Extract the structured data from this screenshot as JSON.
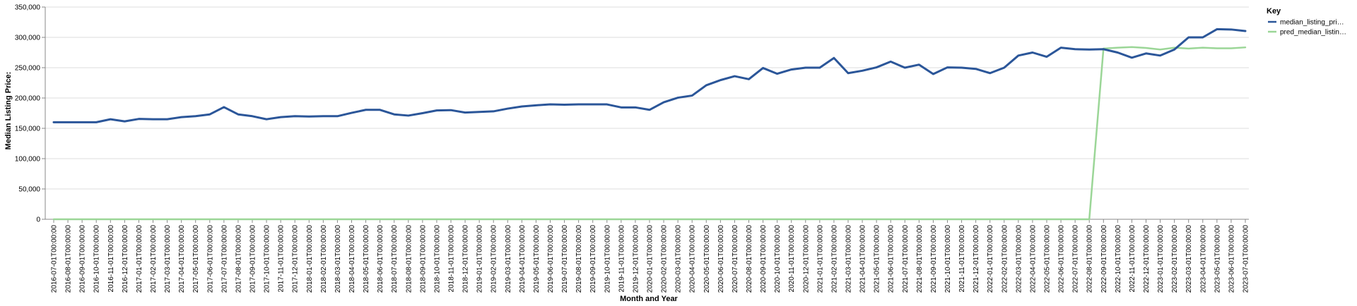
{
  "chart_data": {
    "type": "line",
    "xlabel": "Month and Year",
    "ylabel": "Median Listing Price:",
    "ylim": [
      0,
      350000
    ],
    "yticks": [
      0,
      50000,
      100000,
      150000,
      200000,
      250000,
      300000,
      350000
    ],
    "ytick_labels": [
      "0",
      "50,000",
      "100,000",
      "150,000",
      "200,000",
      "250,000",
      "300,000",
      "350,000"
    ],
    "grid": true,
    "legend": {
      "title": "Key",
      "position": "top-right",
      "entries": [
        "median_listing_pri…",
        "pred_median_listin…"
      ]
    },
    "x": [
      "2016-07-01T00:00:00",
      "2016-08-01T00:00:00",
      "2016-09-01T00:00:00",
      "2016-10-01T00:00:00",
      "2016-11-01T00:00:00",
      "2016-12-01T00:00:00",
      "2017-01-01T00:00:00",
      "2017-02-01T00:00:00",
      "2017-03-01T00:00:00",
      "2017-04-01T00:00:00",
      "2017-05-01T00:00:00",
      "2017-06-01T00:00:00",
      "2017-07-01T00:00:00",
      "2017-08-01T00:00:00",
      "2017-09-01T00:00:00",
      "2017-10-01T00:00:00",
      "2017-11-01T00:00:00",
      "2017-12-01T00:00:00",
      "2018-01-01T00:00:00",
      "2018-02-01T00:00:00",
      "2018-03-01T00:00:00",
      "2018-04-01T00:00:00",
      "2018-05-01T00:00:00",
      "2018-06-01T00:00:00",
      "2018-07-01T00:00:00",
      "2018-08-01T00:00:00",
      "2018-09-01T00:00:00",
      "2018-10-01T00:00:00",
      "2018-11-01T00:00:00",
      "2018-12-01T00:00:00",
      "2019-01-01T00:00:00",
      "2019-02-01T00:00:00",
      "2019-03-01T00:00:00",
      "2019-04-01T00:00:00",
      "2019-05-01T00:00:00",
      "2019-06-01T00:00:00",
      "2019-07-01T00:00:00",
      "2019-08-01T00:00:00",
      "2019-09-01T00:00:00",
      "2019-10-01T00:00:00",
      "2019-11-01T00:00:00",
      "2019-12-01T00:00:00",
      "2020-01-01T00:00:00",
      "2020-02-01T00:00:00",
      "2020-03-01T00:00:00",
      "2020-04-01T00:00:00",
      "2020-05-01T00:00:00",
      "2020-06-01T00:00:00",
      "2020-07-01T00:00:00",
      "2020-08-01T00:00:00",
      "2020-09-01T00:00:00",
      "2020-10-01T00:00:00",
      "2020-11-01T00:00:00",
      "2020-12-01T00:00:00",
      "2021-01-01T00:00:00",
      "2021-02-01T00:00:00",
      "2021-03-01T00:00:00",
      "2021-04-01T00:00:00",
      "2021-05-01T00:00:00",
      "2021-06-01T00:00:00",
      "2021-07-01T00:00:00",
      "2021-08-01T00:00:00",
      "2021-09-01T00:00:00",
      "2021-10-01T00:00:00",
      "2021-11-01T00:00:00",
      "2021-12-01T00:00:00",
      "2022-01-01T00:00:00",
      "2022-02-01T00:00:00",
      "2022-03-01T00:00:00",
      "2022-04-01T00:00:00",
      "2022-05-01T00:00:00",
      "2022-06-01T00:00:00",
      "2022-07-01T00:00:00",
      "2022-08-01T00:00:00",
      "2022-09-01T00:00:00",
      "2022-10-01T00:00:00",
      "2022-11-01T00:00:00",
      "2022-12-01T00:00:00",
      "2023-01-01T00:00:00",
      "2023-02-01T00:00:00",
      "2023-03-01T00:00:00",
      "2023-04-01T00:00:00",
      "2023-05-01T00:00:00",
      "2023-06-01T00:00:00",
      "2023-07-01T00:00:00"
    ],
    "series": [
      {
        "name": "median_listing_pri…",
        "color": "#2b5699",
        "values": [
          160000,
          160000,
          160000,
          160000,
          165000,
          161500,
          165500,
          165000,
          165000,
          168500,
          170000,
          173000,
          185000,
          173000,
          170000,
          165000,
          168500,
          170000,
          169500,
          170000,
          170000,
          175500,
          180500,
          180500,
          173000,
          171000,
          175000,
          179500,
          180000,
          176000,
          177000,
          178000,
          182500,
          186000,
          188000,
          189500,
          189000,
          189500,
          189500,
          189500,
          184500,
          184500,
          180500,
          193000,
          200500,
          204000,
          221000,
          229500,
          236000,
          231000,
          249500,
          240000,
          247000,
          250000,
          250000,
          266000,
          241000,
          245000,
          250500,
          260000,
          250000,
          255000,
          239500,
          250500,
          250000,
          248000,
          241000,
          250000,
          270000,
          275000,
          268000,
          283000,
          280500,
          280000,
          280500,
          275000,
          266500,
          273500,
          270000,
          280000,
          300000,
          300000,
          313500,
          313000,
          310500
        ]
      },
      {
        "name": "pred_median_listin…",
        "color": "#9bd697",
        "values": [
          0,
          0,
          0,
          0,
          0,
          0,
          0,
          0,
          0,
          0,
          0,
          0,
          0,
          0,
          0,
          0,
          0,
          0,
          0,
          0,
          0,
          0,
          0,
          0,
          0,
          0,
          0,
          0,
          0,
          0,
          0,
          0,
          0,
          0,
          0,
          0,
          0,
          0,
          0,
          0,
          0,
          0,
          0,
          0,
          0,
          0,
          0,
          0,
          0,
          0,
          0,
          0,
          0,
          0,
          0,
          0,
          0,
          0,
          0,
          0,
          0,
          0,
          0,
          0,
          0,
          0,
          0,
          0,
          0,
          0,
          0,
          0,
          0,
          0,
          281500,
          283000,
          284000,
          282500,
          280000,
          283000,
          281500,
          283000,
          282000,
          282000,
          283500
        ]
      }
    ]
  }
}
